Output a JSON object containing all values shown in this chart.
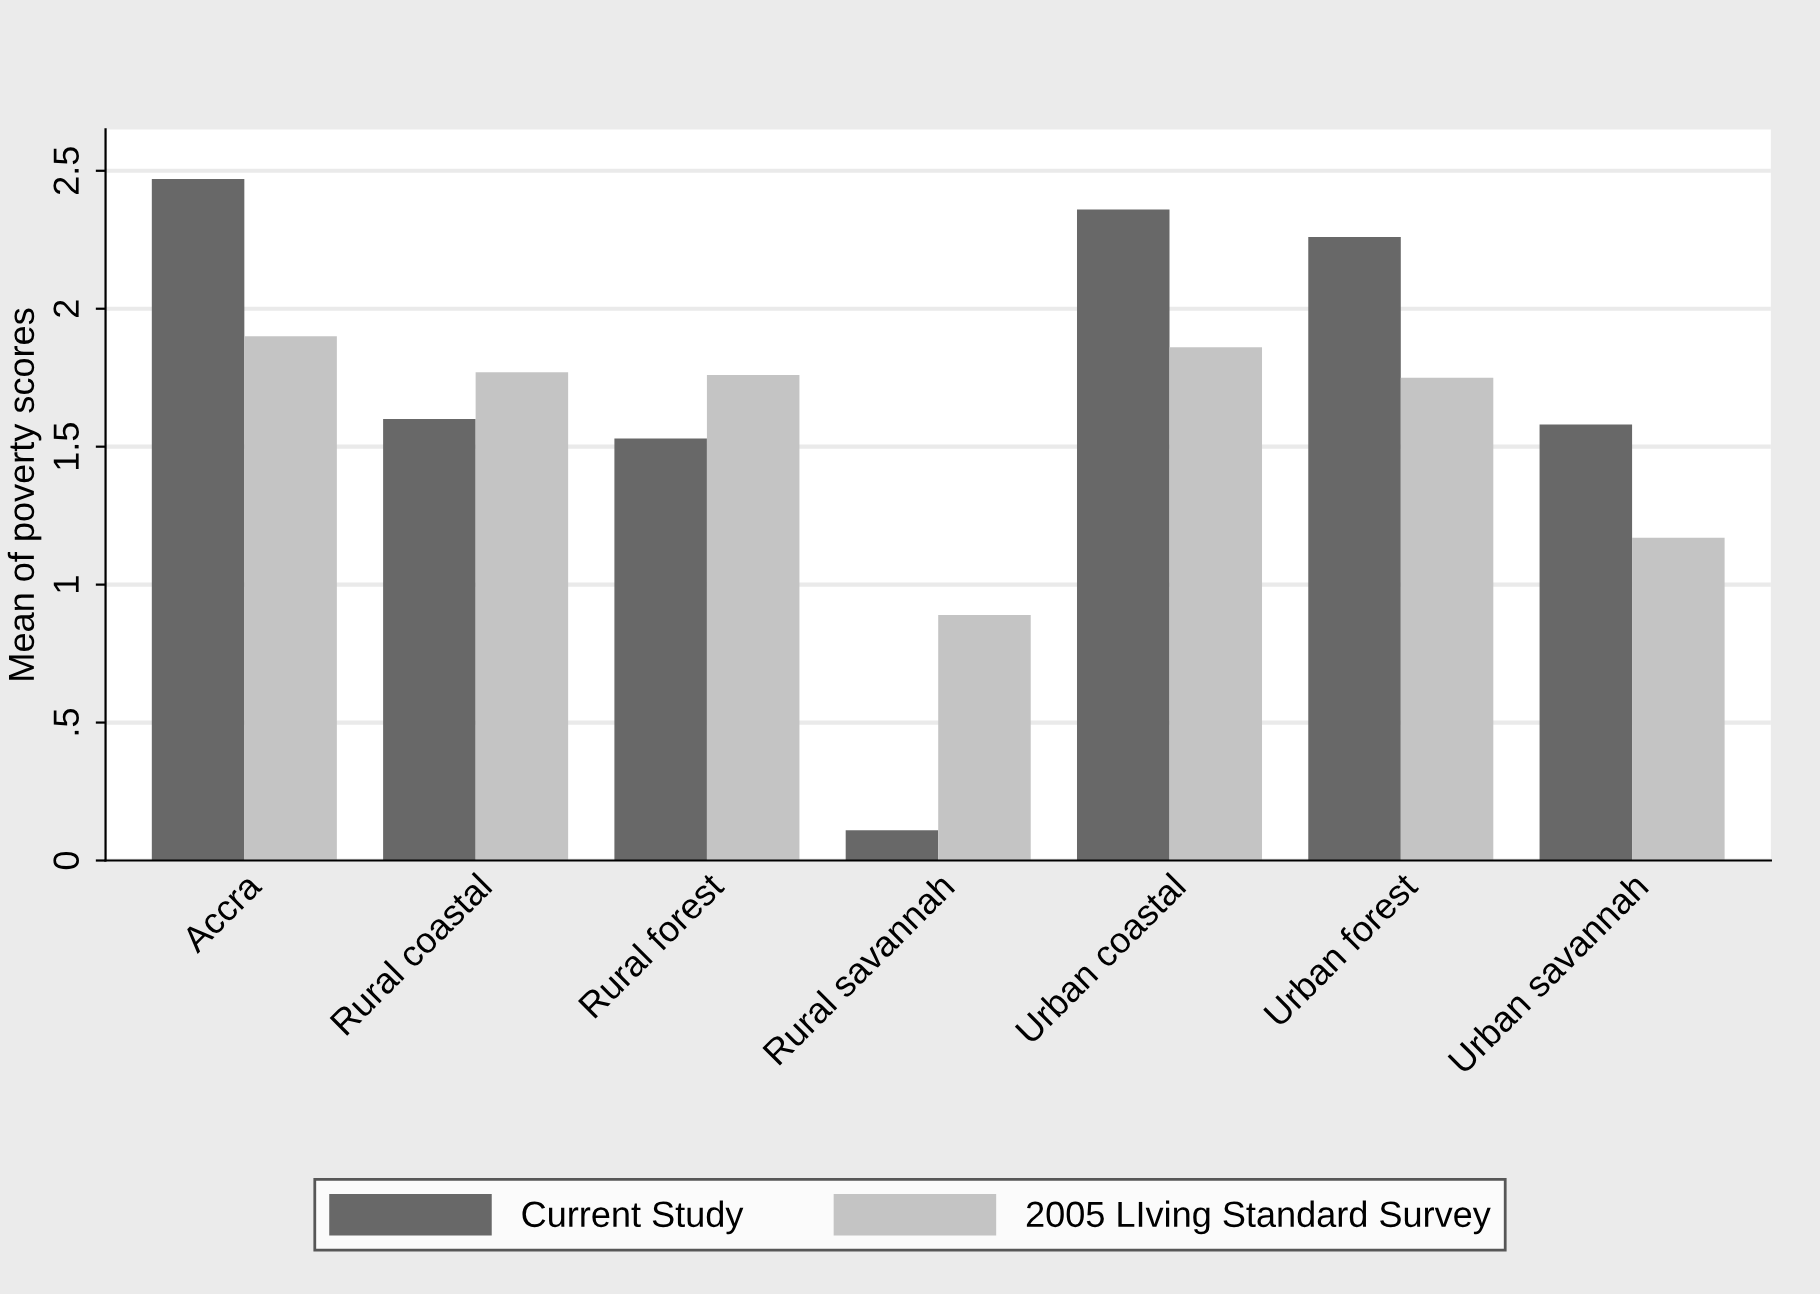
{
  "chart_data": {
    "type": "bar",
    "ylabel": "Mean of poverty scores",
    "categories": [
      "Accra",
      "Rural coastal",
      "Rural forest",
      "Rural savannah",
      "Urban coastal",
      "Urban forest",
      "Urban savannah"
    ],
    "series": [
      {
        "name": "Current Study",
        "color": "#686868",
        "values": [
          2.47,
          1.6,
          1.53,
          0.11,
          2.36,
          2.26,
          1.58
        ]
      },
      {
        "name": "2005 LIving Standard Survey",
        "color": "#c4c4c4",
        "values": [
          1.9,
          1.77,
          1.76,
          0.89,
          1.86,
          1.75,
          1.17
        ]
      }
    ],
    "ylim": [
      0,
      2.65
    ],
    "yticks": [
      0,
      {
        "value": 0.5,
        "label": ".5"
      },
      1,
      1.5,
      2,
      2.5
    ],
    "grid": "y",
    "legend": "bottom"
  }
}
